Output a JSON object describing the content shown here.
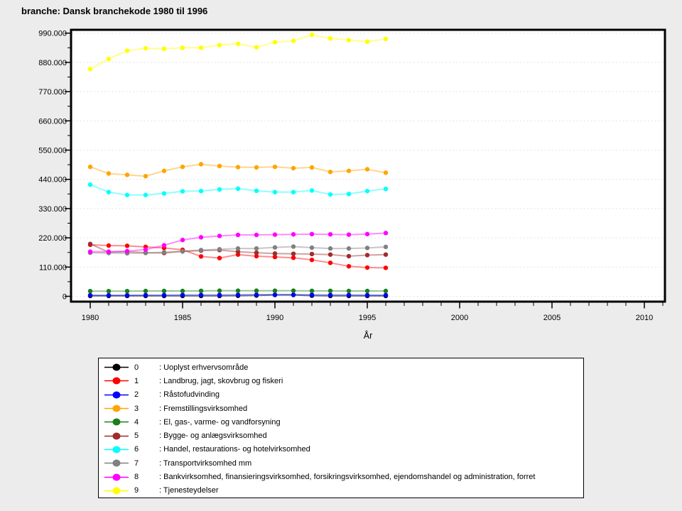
{
  "legend_prefix": ": ",
  "colors": {
    "background": "#ECECEC",
    "plot_background": "#FFFFFF",
    "frame": "#000000",
    "gridline": "#E4E4E4"
  },
  "chart_data": {
    "type": "line",
    "title": "branche: Dansk branchekode 1980 til 1996",
    "xlabel": "År",
    "ylabel": "",
    "grid": "horizontal-major-only",
    "legend_position": "bottom",
    "x": [
      1980,
      1981,
      1982,
      1983,
      1984,
      1985,
      1986,
      1987,
      1988,
      1989,
      1990,
      1991,
      1992,
      1993,
      1994,
      1995,
      1996
    ],
    "x_axis": {
      "min": 1979,
      "max": 2011,
      "major_ticks": [
        1980,
        1985,
        1990,
        1995,
        2000,
        2005,
        2010
      ],
      "tick_labels": [
        "1980",
        "1985",
        "1990",
        "1995",
        "2000",
        "2005",
        "2010"
      ],
      "minor_step_years": 1
    },
    "y_axis": {
      "min": 0,
      "max": 990000,
      "major_step": 110000,
      "minor_step": 55000,
      "tick_labels": [
        "0",
        "110.000",
        "220.000",
        "330.000",
        "440.000",
        "550.000",
        "660.000",
        "770.000",
        "880.000",
        "990.000"
      ]
    },
    "series": [
      {
        "code": "0",
        "label": "Uoplyst erhvervsområde",
        "color": "#000000",
        "values": [
          1500,
          1500,
          1500,
          1500,
          1500,
          1500,
          1500,
          1500,
          2000,
          3000,
          5000,
          5000,
          2500,
          1500,
          1500,
          1500,
          1500
        ]
      },
      {
        "code": "1",
        "label": "Landbrug, jagt, skovbrug og fiskeri",
        "color": "#FF0000",
        "values": [
          194000,
          191000,
          190000,
          186000,
          182000,
          175000,
          150000,
          144000,
          157000,
          151000,
          148000,
          145000,
          137000,
          126000,
          113000,
          108000,
          107000
        ]
      },
      {
        "code": "2",
        "label": "Råstofudvinding",
        "color": "#0000FF",
        "values": [
          4000,
          4000,
          4000,
          4500,
          4500,
          5000,
          5000,
          5000,
          5500,
          6000,
          6000,
          6000,
          5500,
          5000,
          5000,
          4500,
          4500
        ]
      },
      {
        "code": "3",
        "label": "Fremstillingsvirksomhed",
        "color": "#FFA500",
        "values": [
          487000,
          462000,
          457000,
          452000,
          472000,
          487000,
          497000,
          490000,
          486000,
          485000,
          487000,
          482000,
          485000,
          468000,
          472000,
          478000,
          465000
        ]
      },
      {
        "code": "4",
        "label": "El, gas-, varme- og vandforsyning",
        "color": "#1B7E1B",
        "values": [
          19500,
          19500,
          19500,
          20000,
          20000,
          20000,
          20500,
          21000,
          21000,
          21000,
          21000,
          21000,
          20500,
          20500,
          20000,
          20000,
          20000
        ]
      },
      {
        "code": "5",
        "label": "Bygge- og anlægsvirksomhed",
        "color": "#A02C2C",
        "values": [
          197000,
          166000,
          168000,
          164000,
          163000,
          169000,
          172000,
          174000,
          168000,
          164000,
          161000,
          160000,
          159000,
          157000,
          151000,
          155000,
          157000
        ]
      },
      {
        "code": "6",
        "label": "Handel, restaurations- og hotelvirksomhed",
        "color": "#00FFFF",
        "values": [
          420000,
          392000,
          381000,
          381000,
          387000,
          395000,
          396000,
          402000,
          405000,
          397000,
          392000,
          392000,
          398000,
          383000,
          385000,
          396000,
          404000
        ]
      },
      {
        "code": "7",
        "label": "Transportvirksomhed mm",
        "color": "#808080",
        "values": [
          164000,
          163000,
          162000,
          163000,
          166000,
          170000,
          174000,
          177000,
          180000,
          180000,
          184000,
          187000,
          183000,
          180000,
          180000,
          182000,
          186000
        ]
      },
      {
        "code": "8",
        "label": "Bankvirksomhed, finansieringsvirksomhed, forsikringsvirksomhed, ejendomshandel og administration, forret",
        "color": "#FF00FF",
        "values": [
          168000,
          168000,
          170000,
          176000,
          192000,
          212000,
          222000,
          227000,
          231000,
          231000,
          232000,
          233000,
          234000,
          233000,
          232000,
          234000,
          238000
        ]
      },
      {
        "code": "9",
        "label": "Tjenesteydelser",
        "color": "#FFFF00",
        "values": [
          855000,
          893000,
          924000,
          933000,
          931000,
          935000,
          935000,
          945000,
          950000,
          937000,
          956000,
          961000,
          984000,
          970000,
          964000,
          958000,
          968000
        ]
      }
    ]
  }
}
